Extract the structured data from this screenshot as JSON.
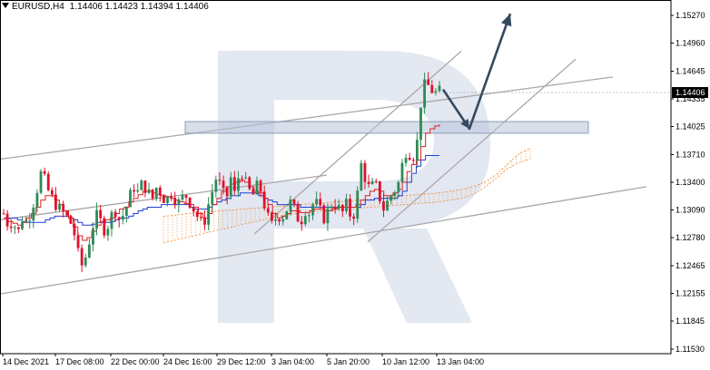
{
  "header": {
    "symbol_timeframe": "EURUSD,H4",
    "open": "1.14406",
    "high": "1.14423",
    "low": "1.14394",
    "close": "1.14406"
  },
  "chart_data": {
    "type": "candlestick",
    "symbol": "EURUSD",
    "timeframe": "H4",
    "title": "",
    "xlabel": "",
    "ylabel": "",
    "ylim": [
      1.1153,
      1.1527
    ],
    "grid": false,
    "y_ticks": [
      "1.15270",
      "1.14960",
      "1.14645",
      "1.14335",
      "1.14025",
      "1.13710",
      "1.13400",
      "1.13090",
      "1.12780",
      "1.12465",
      "1.12155",
      "1.11845",
      "1.11530"
    ],
    "x_ticks": [
      "14 Dec 2021",
      "17 Dec 08:00",
      "22 Dec 00:00",
      "24 Dec 16:00",
      "29 Dec 12:00",
      "3 Jan 04:00",
      "5 Jan 20:00",
      "10 Jan 12:00",
      "13 Jan 04:00"
    ],
    "current_price": "1.14406",
    "up_color": "#2e8b57",
    "down_color": "#e0102a",
    "close_path": [
      1.1305,
      1.1292,
      1.1298,
      1.1281,
      1.13,
      1.1295,
      1.131,
      1.1328,
      1.135,
      1.134,
      1.1325,
      1.1318,
      1.131,
      1.1305,
      1.1298,
      1.129,
      1.126,
      1.1245,
      1.1262,
      1.1288,
      1.1302,
      1.1295,
      1.1285,
      1.13,
      1.131,
      1.1298,
      1.1305,
      1.132,
      1.1336,
      1.1328,
      1.134,
      1.133,
      1.132,
      1.1335,
      1.1328,
      1.1318,
      1.133,
      1.1322,
      1.1315,
      1.1328,
      1.132,
      1.131,
      1.13,
      1.129,
      1.1312,
      1.133,
      1.1348,
      1.133,
      1.132,
      1.1345,
      1.1322,
      1.136,
      1.134,
      1.133,
      1.1325,
      1.134,
      1.132,
      1.13,
      1.129,
      1.1305,
      1.13,
      1.131,
      1.1318,
      1.1305,
      1.1295,
      1.131,
      1.1305,
      1.132,
      1.131,
      1.13,
      1.1308,
      1.132,
      1.1312,
      1.1305,
      1.1315,
      1.13,
      1.131,
      1.1362,
      1.1345,
      1.133,
      1.134,
      1.1325,
      1.131,
      1.132,
      1.133,
      1.1335,
      1.136,
      1.138,
      1.1368,
      1.1375,
      1.143,
      1.1452,
      1.1445,
      1.144,
      1.1441
    ],
    "tenkan_path": [
      1.13,
      1.1296,
      1.1294,
      1.1292,
      1.1295,
      1.13,
      1.1305,
      1.1312,
      1.132,
      1.1325,
      1.1325,
      1.132,
      1.1315,
      1.1308,
      1.13,
      1.129,
      1.128,
      1.1275,
      1.1278,
      1.1285,
      1.1292,
      1.1296,
      1.1298,
      1.13,
      1.1305,
      1.131,
      1.1312,
      1.1318,
      1.1322,
      1.1326,
      1.133,
      1.133,
      1.1328,
      1.1326,
      1.1325,
      1.1324,
      1.1322,
      1.132,
      1.1318,
      1.1316,
      1.1315,
      1.1312,
      1.1305,
      1.13,
      1.1305,
      1.1315,
      1.1322,
      1.133,
      1.1335,
      1.1338,
      1.134,
      1.1342,
      1.134,
      1.1335,
      1.133,
      1.1328,
      1.1322,
      1.1315,
      1.1305,
      1.13,
      1.1302,
      1.1305,
      1.1308,
      1.1308,
      1.1306,
      1.1306,
      1.1308,
      1.131,
      1.131,
      1.1308,
      1.1308,
      1.131,
      1.1312,
      1.1312,
      1.1312,
      1.1312,
      1.1315,
      1.132,
      1.1325,
      1.133,
      1.1332,
      1.133,
      1.1325,
      1.1325,
      1.1328,
      1.1332,
      1.134,
      1.1352,
      1.136,
      1.1365,
      1.138,
      1.1395,
      1.14,
      1.1403,
      1.1405
    ],
    "kijun_path": [
      1.13,
      1.13,
      1.13,
      1.1298,
      1.1296,
      1.1295,
      1.1295,
      1.1295,
      1.1295,
      1.1298,
      1.13,
      1.1302,
      1.1302,
      1.1302,
      1.13,
      1.1298,
      1.1295,
      1.1292,
      1.1292,
      1.1293,
      1.1295,
      1.1295,
      1.1295,
      1.1296,
      1.1298,
      1.13,
      1.13,
      1.1302,
      1.1305,
      1.1308,
      1.131,
      1.1312,
      1.1312,
      1.1312,
      1.1315,
      1.1315,
      1.1315,
      1.1315,
      1.1315,
      1.1315,
      1.1312,
      1.131,
      1.131,
      1.131,
      1.1312,
      1.1315,
      1.1318,
      1.132,
      1.1322,
      1.1325,
      1.1325,
      1.1328,
      1.1328,
      1.1328,
      1.1328,
      1.1325,
      1.1322,
      1.132,
      1.1318,
      1.1315,
      1.1315,
      1.1315,
      1.1315,
      1.1315,
      1.1312,
      1.1312,
      1.1312,
      1.1312,
      1.1312,
      1.1312,
      1.1312,
      1.1312,
      1.1312,
      1.1312,
      1.1312,
      1.1312,
      1.1312,
      1.1315,
      1.132,
      1.132,
      1.1322,
      1.1322,
      1.1322,
      1.1322,
      1.1322,
      1.1325,
      1.133,
      1.134,
      1.135,
      1.1358,
      1.1365,
      1.137,
      1.137,
      1.137,
      1.137
    ],
    "cloud_upper": [
      1.1302,
      1.1303,
      1.1305,
      1.1306,
      1.1307,
      1.1308,
      1.1309,
      1.131,
      1.1311,
      1.1312,
      1.1313,
      1.1314,
      1.1315,
      1.1316,
      1.1317,
      1.1318,
      1.1319,
      1.132,
      1.1321,
      1.1322,
      1.1323,
      1.1325,
      1.1326,
      1.1327,
      1.1328,
      1.133,
      1.1332,
      1.1335,
      1.134,
      1.1348,
      1.136,
      1.1372,
      1.1378
    ],
    "cloud_lower": [
      1.1272,
      1.1275,
      1.1278,
      1.1281,
      1.1284,
      1.1287,
      1.129,
      1.1293,
      1.1296,
      1.1299,
      1.1302,
      1.1304,
      1.1306,
      1.1307,
      1.1308,
      1.1309,
      1.131,
      1.1311,
      1.1312,
      1.1313,
      1.1314,
      1.1315,
      1.1316,
      1.1317,
      1.1318,
      1.132,
      1.1322,
      1.1326,
      1.1334,
      1.1344,
      1.1355,
      1.1362,
      1.1366
    ],
    "resistance_zone": [
      1.1395,
      1.1408
    ],
    "forecast_path": [
      1.1444,
      1.14,
      1.1529
    ]
  }
}
